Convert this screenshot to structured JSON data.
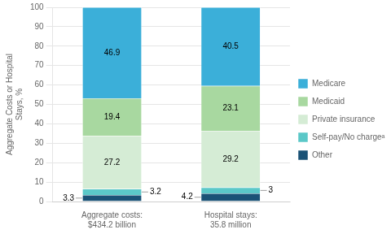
{
  "chart_data": {
    "type": "bar",
    "stacked": true,
    "categories": [
      "Aggregate costs:\n$434.2 billion",
      "Hospital stays:\n35.8 million"
    ],
    "y_label": "Aggregate Costs or Hospital\nStays, %",
    "series": [
      {
        "name": "Other",
        "color": "#1A5276",
        "values": [
          3.3,
          4.2
        ]
      },
      {
        "name": "Self-pay/No chargeᵃ",
        "color": "#5BC8C8",
        "values": [
          3.2,
          3.0
        ]
      },
      {
        "name": "Private insurance",
        "color": "#D5ECD5",
        "values": [
          27.2,
          29.2
        ]
      },
      {
        "name": "Medicaid",
        "color": "#A8D8A0",
        "values": [
          19.4,
          23.1
        ]
      },
      {
        "name": "Medicare",
        "color": "#3BAFD9",
        "values": [
          46.9,
          40.5
        ]
      }
    ],
    "ylim": [
      0,
      100
    ],
    "yticks": [
      0,
      10,
      20,
      30,
      40,
      50,
      60,
      70,
      80,
      90,
      100
    ],
    "grid": true,
    "legend": "right",
    "data_labels": true
  }
}
